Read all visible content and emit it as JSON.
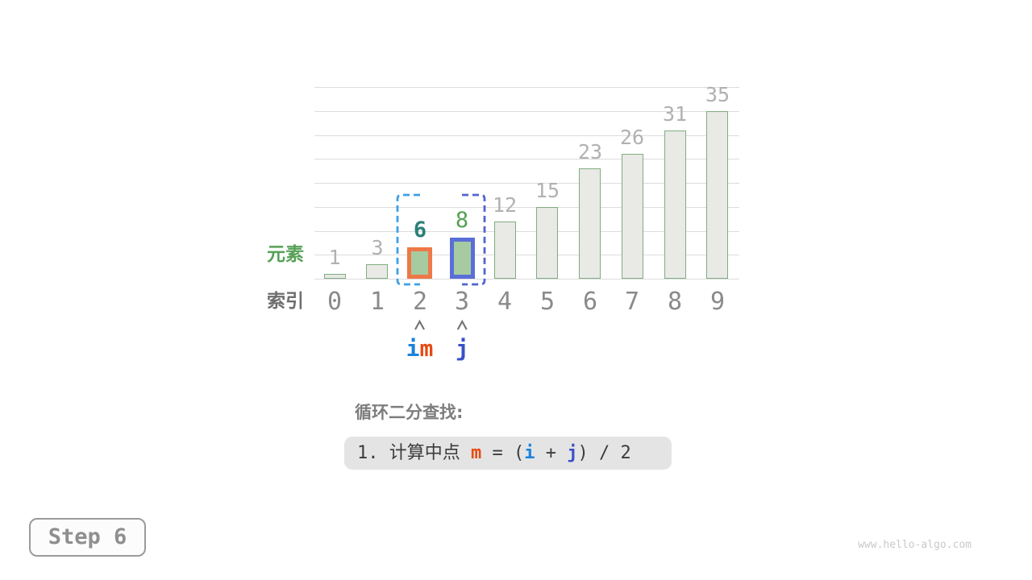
{
  "page": {
    "background": "#ffffff"
  },
  "chart_data": {
    "type": "bar",
    "title": "",
    "xlabel": "索引",
    "ylabel": "元素",
    "categories": [
      "0",
      "1",
      "2",
      "3",
      "4",
      "5",
      "6",
      "7",
      "8",
      "9"
    ],
    "values": [
      1,
      3,
      6,
      8,
      12,
      15,
      23,
      26,
      31,
      35
    ],
    "ylim": [
      0,
      40
    ],
    "gridline_step": 5,
    "grid": true,
    "legend": false,
    "bar_style": {
      "fill": "#e9e9e6",
      "stroke": "#80ad80",
      "value_label_color": "#b1b1b1",
      "index_label_color": "#8a8a8a",
      "gridline_color": "#dcdcdc"
    },
    "highlights": [
      {
        "index": 2,
        "fill": "#a6cba1",
        "stroke": "#ee7947",
        "value_label_color": "#2c8076",
        "value_label_bold": true
      },
      {
        "index": 3,
        "fill": "#a6cba1",
        "stroke": "#5a6ed8",
        "value_label_color": "#53a053",
        "value_label_bold": false
      }
    ],
    "range_brackets": {
      "left_index": 2,
      "right_index": 3,
      "left_color": "#3da0e8",
      "right_color": "#5163d2",
      "style": "dashed"
    }
  },
  "axis_labels": {
    "element": "元素",
    "element_color": "#57a157",
    "index": "索引",
    "index_color": "#6e6e6e"
  },
  "pointers": {
    "caret_color": "#757575",
    "items": [
      {
        "index": 2,
        "letters": [
          {
            "text": "i",
            "color": "#1a82dc"
          },
          {
            "text": "m",
            "color": "#e64a12"
          }
        ]
      },
      {
        "index": 3,
        "letters": [
          {
            "text": "j",
            "color": "#3a50c8"
          }
        ]
      }
    ]
  },
  "caption": {
    "title": "循环二分查找:",
    "title_color": "#7d7d7d",
    "box_bg": "#e4e4e4",
    "formula_segments": [
      {
        "text": "1. 计算中点 ",
        "color": "#3c3c3c",
        "bold": false
      },
      {
        "text": "m",
        "color": "#e64a12",
        "bold": true
      },
      {
        "text": " = (",
        "color": "#3c3c3c",
        "bold": false
      },
      {
        "text": "i",
        "color": "#1a82dc",
        "bold": true
      },
      {
        "text": " + ",
        "color": "#3c3c3c",
        "bold": false
      },
      {
        "text": "j",
        "color": "#3a50c8",
        "bold": true
      },
      {
        "text": ") / 2",
        "color": "#3c3c3c",
        "bold": false
      }
    ]
  },
  "step_badge": {
    "label": "Step 6",
    "text_color": "#8f8f8f",
    "border_color": "#9b9b9b"
  },
  "watermark": {
    "text": "www.hello-algo.com",
    "color": "#c9c9c9"
  }
}
